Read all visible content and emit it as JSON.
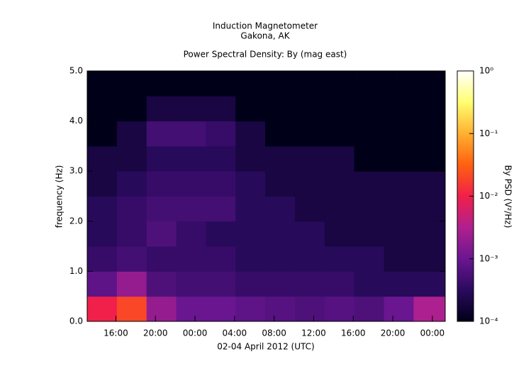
{
  "chart_data": {
    "type": "spectrogram",
    "title": "Induction Magnetometer",
    "subtitle": "Gakona, AK",
    "plot_title": "Power Spectral Density: By (mag east)",
    "xlabel": "02-04 April 2012 (UTC)",
    "ylabel": "frequency (Hz)",
    "colorbar_label": "By PSD (V²/Hz)",
    "xlim": [
      13.1,
      49.3
    ],
    "xticks": [
      {
        "value": 16,
        "label": "16:00"
      },
      {
        "value": 20,
        "label": "20:00"
      },
      {
        "value": 24,
        "label": "00:00"
      },
      {
        "value": 28,
        "label": "04:00"
      },
      {
        "value": 32,
        "label": "08:00"
      },
      {
        "value": 36,
        "label": "12:00"
      },
      {
        "value": 40,
        "label": "16:00"
      },
      {
        "value": 44,
        "label": "20:00"
      },
      {
        "value": 48,
        "label": "00:00"
      }
    ],
    "ylim": [
      0,
      5
    ],
    "yticks": [
      {
        "value": 0,
        "label": "0.0"
      },
      {
        "value": 1,
        "label": "1.0"
      },
      {
        "value": 2,
        "label": "2.0"
      },
      {
        "value": 3,
        "label": "3.0"
      },
      {
        "value": 4,
        "label": "4.0"
      },
      {
        "value": 5,
        "label": "5.0"
      }
    ],
    "zlim": [
      0.0001,
      1
    ],
    "zlog": true,
    "zticks": [
      {
        "value": 0.0001,
        "label": "10⁻⁴"
      },
      {
        "value": 0.001,
        "label": "10⁻³"
      },
      {
        "value": 0.01,
        "label": "10⁻²"
      },
      {
        "value": 0.1,
        "label": "10⁻¹"
      },
      {
        "value": 1,
        "label": "10⁰"
      }
    ],
    "colormap": [
      "#000018",
      "#2a0a5e",
      "#6a1690",
      "#b0208f",
      "#f0204a",
      "#ff6010",
      "#ffb030",
      "#ffff70",
      "#ffffff"
    ],
    "xbins": [
      13.1,
      16.1,
      19.1,
      22.1,
      25.1,
      28.1,
      31.1,
      34.1,
      37.1,
      40.1,
      43.1,
      46.1,
      49.3
    ],
    "ybins": [
      0,
      0.5,
      1,
      1.5,
      2,
      2.5,
      3,
      3.5,
      4,
      4.5,
      5
    ],
    "z": [
      [
        0.01,
        0.02,
        0.002,
        0.001,
        0.001,
        0.0008,
        0.0007,
        0.0006,
        0.0007,
        0.0006,
        0.001,
        0.003
      ],
      [
        0.0008,
        0.002,
        0.0006,
        0.0005,
        0.0005,
        0.0004,
        0.0004,
        0.0004,
        0.0004,
        0.0003,
        0.0003,
        0.0003
      ],
      [
        0.0004,
        0.0005,
        0.0004,
        0.0004,
        0.0004,
        0.0003,
        0.0003,
        0.0003,
        0.0003,
        0.0003,
        0.0002,
        0.0002
      ],
      [
        0.0003,
        0.0004,
        0.0006,
        0.0004,
        0.0003,
        0.0003,
        0.0003,
        0.0003,
        0.0002,
        0.0002,
        0.0002,
        0.0002
      ],
      [
        0.0003,
        0.0004,
        0.0005,
        0.0005,
        0.0005,
        0.0003,
        0.0003,
        0.0002,
        0.0002,
        0.0002,
        0.0002,
        0.0002
      ],
      [
        0.0002,
        0.0003,
        0.0004,
        0.0004,
        0.0004,
        0.0003,
        0.0002,
        0.0002,
        0.0002,
        0.0002,
        0.0002,
        0.0002
      ],
      [
        0.0002,
        0.0002,
        0.0003,
        0.0003,
        0.0003,
        0.0002,
        0.0002,
        0.0002,
        0.0002,
        0.0001,
        0.0001,
        0.0001
      ],
      [
        0.0001,
        0.0002,
        0.0005,
        0.0005,
        0.0004,
        0.0002,
        0.0001,
        0.0001,
        0.0001,
        0.0001,
        0.0001,
        0.0001
      ],
      [
        0.0001,
        0.0001,
        0.0002,
        0.0002,
        0.0002,
        0.0001,
        0.0001,
        0.0001,
        0.0001,
        0.0001,
        0.0001,
        0.0001
      ],
      [
        0.0001,
        0.0001,
        0.0001,
        0.0001,
        0.0001,
        0.0001,
        0.0001,
        0.0001,
        0.0001,
        0.0001,
        0.0001,
        0.0001
      ]
    ]
  }
}
